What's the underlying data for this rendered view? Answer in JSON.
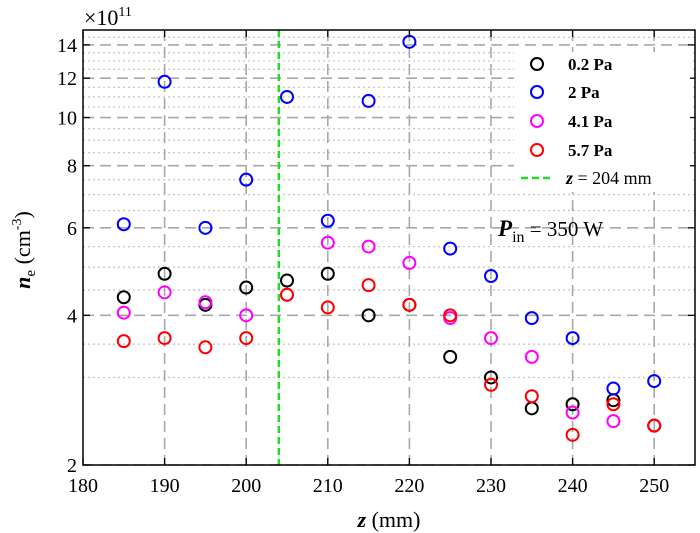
{
  "chart_data": {
    "type": "scatter",
    "x_axis": {
      "label_symbol": "z",
      "label_unit": " (mm)",
      "range": [
        180,
        255
      ],
      "ticks": [
        180,
        190,
        200,
        210,
        220,
        230,
        240,
        250
      ]
    },
    "y_axis": {
      "label_symbol": "n",
      "label_subscript": "e",
      "label_unit_prefix": " (cm",
      "label_unit_exponent": "-3",
      "label_unit_suffix": ")",
      "scale": "log",
      "range": [
        2.0,
        15.0
      ],
      "multiplier_base": "×10",
      "multiplier_exponent": "11",
      "ticks": [
        2,
        4,
        6,
        8,
        10,
        12,
        14
      ],
      "major_gridlines": [
        2,
        4,
        6,
        8,
        10,
        12,
        14
      ],
      "minor_gridlines": [
        3,
        3.5,
        4.5,
        5,
        5.5,
        6.5,
        7,
        7.5,
        8.5,
        9,
        9.5,
        10.5,
        11,
        11.5,
        12.5,
        13,
        13.5,
        14.5
      ]
    },
    "vertical_gridlines_x": [
      190,
      200,
      210,
      220,
      230,
      240,
      250
    ],
    "grid": true,
    "legend_position": "top-right",
    "series": [
      {
        "name": "0.2 Pa",
        "color": "#000000",
        "x": [
          185,
          190,
          195,
          200,
          205,
          210,
          215,
          220,
          225,
          230,
          235,
          240,
          245,
          250
        ],
        "y": [
          4.35,
          4.85,
          4.2,
          4.55,
          4.7,
          4.85,
          4.0,
          4.2,
          3.3,
          3.0,
          2.6,
          2.65,
          2.7,
          2.4
        ]
      },
      {
        "name": "2 Pa",
        "color": "#0000ff",
        "x": [
          185,
          190,
          195,
          200,
          205,
          210,
          215,
          220,
          225,
          230,
          235,
          240,
          245,
          250
        ],
        "y": [
          6.1,
          11.8,
          6.0,
          7.5,
          11.0,
          6.2,
          10.8,
          14.2,
          5.45,
          4.8,
          3.95,
          3.6,
          2.85,
          2.95
        ]
      },
      {
        "name": "4.1 Pa",
        "color": "#ff00ff",
        "x": [
          185,
          190,
          195,
          200,
          205,
          210,
          215,
          220,
          225,
          230,
          235,
          240,
          245,
          250
        ],
        "y": [
          4.05,
          4.45,
          4.25,
          4.0,
          4.4,
          5.6,
          5.5,
          5.1,
          3.95,
          3.6,
          3.3,
          2.55,
          2.45,
          2.4
        ]
      },
      {
        "name": "5.7 Pa",
        "color": "#ff0000",
        "x": [
          185,
          190,
          195,
          200,
          205,
          210,
          215,
          220,
          225,
          230,
          235,
          240,
          245,
          250
        ],
        "y": [
          3.55,
          3.6,
          3.45,
          3.6,
          4.4,
          4.15,
          4.6,
          4.2,
          4.0,
          2.9,
          2.75,
          2.3,
          2.65,
          2.4
        ]
      }
    ],
    "reference_line": {
      "label_symbol": "z",
      "label_text": " = 204 mm",
      "x": 204,
      "color": "#22dd22",
      "style": "dashed"
    },
    "annotation": {
      "symbol": "P",
      "subscript": "in",
      "text": " = 350 W",
      "anchor": [
        214,
        6.0
      ]
    }
  }
}
